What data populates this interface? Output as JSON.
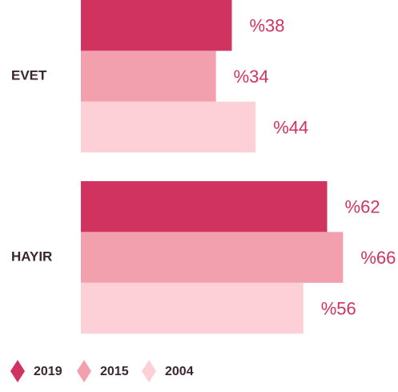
{
  "chart_data": {
    "type": "bar",
    "orientation": "horizontal",
    "categories": [
      "EVET",
      "HAYIR"
    ],
    "series": [
      {
        "name": "2019",
        "color": "#d0335f",
        "values": [
          38,
          62
        ],
        "value_labels": [
          "%38",
          "%62"
        ]
      },
      {
        "name": "2015",
        "color": "#f2a0ae",
        "values": [
          34,
          66
        ],
        "value_labels": [
          "%34",
          "%66"
        ]
      },
      {
        "name": "2004",
        "color": "#fdd0d8",
        "values": [
          44,
          56
        ],
        "value_labels": [
          "%44",
          "%56"
        ]
      }
    ]
  }
}
